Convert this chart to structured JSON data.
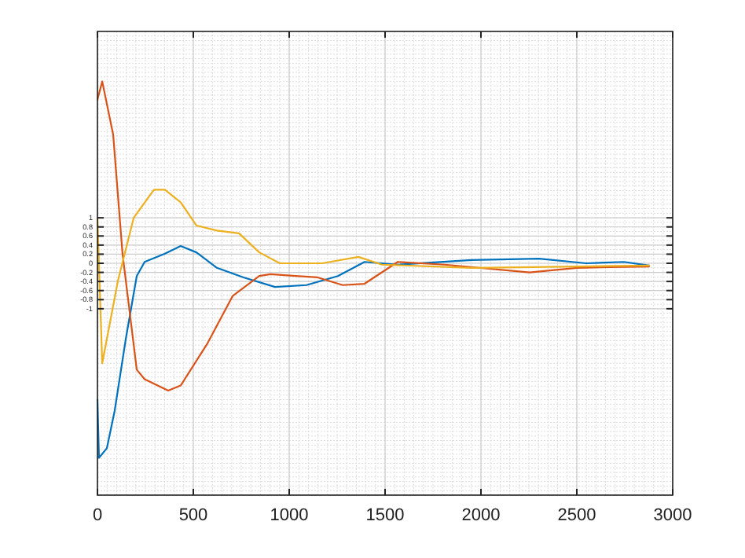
{
  "chart_data": {
    "type": "line",
    "xlim": [
      0,
      3000
    ],
    "xticks": [
      0,
      500,
      1000,
      1500,
      2000,
      2500,
      3000
    ],
    "ylim": [
      -5.1,
      5.1
    ],
    "yticks": [
      -1,
      -0.8,
      -0.6,
      -0.4,
      -0.2,
      0,
      0.2,
      0.4,
      0.6,
      0.8,
      1
    ],
    "grid": true,
    "series": [
      {
        "color": "#0072bd",
        "x": [
          0,
          8,
          49,
          90,
          148,
          205,
          246,
          352,
          434,
          516,
          623,
          762,
          926,
          1090,
          1254,
          1393,
          1566,
          1951,
          2303,
          2549,
          2746,
          2877
        ],
        "values": [
          -3,
          -4.28,
          -4.07,
          -3.24,
          -1.66,
          -0.28,
          0.03,
          0.21,
          0.38,
          0.24,
          -0.1,
          -0.31,
          -0.52,
          -0.48,
          -0.28,
          0.03,
          -0.03,
          0.07,
          0.1,
          0,
          0.03,
          -0.05
        ]
      },
      {
        "color": "#d95319",
        "x": [
          0,
          25,
          82,
          131,
          205,
          246,
          369,
          434,
          574,
          705,
          844,
          902,
          1033,
          1148,
          1279,
          1393,
          1566,
          1811,
          2254,
          2500,
          2877
        ],
        "values": [
          3.6,
          4.0,
          2.83,
          0.2,
          -2.34,
          -2.55,
          -2.8,
          -2.69,
          -1.76,
          -0.72,
          -0.28,
          -0.24,
          -0.28,
          -0.31,
          -0.48,
          -0.45,
          0.03,
          -0.03,
          -0.2,
          -0.1,
          -0.07
        ]
      },
      {
        "color": "#edb120",
        "x": [
          0,
          25,
          107,
          189,
          295,
          352,
          434,
          516,
          623,
          738,
          844,
          951,
          1172,
          1361,
          1484,
          1951,
          2500,
          2877
        ],
        "values": [
          1.0,
          -2.2,
          -0.38,
          1.0,
          1.62,
          1.62,
          1.34,
          0.83,
          0.72,
          0.66,
          0.24,
          0,
          0,
          0.14,
          -0.03,
          -0.1,
          -0.07,
          -0.05
        ]
      }
    ]
  }
}
